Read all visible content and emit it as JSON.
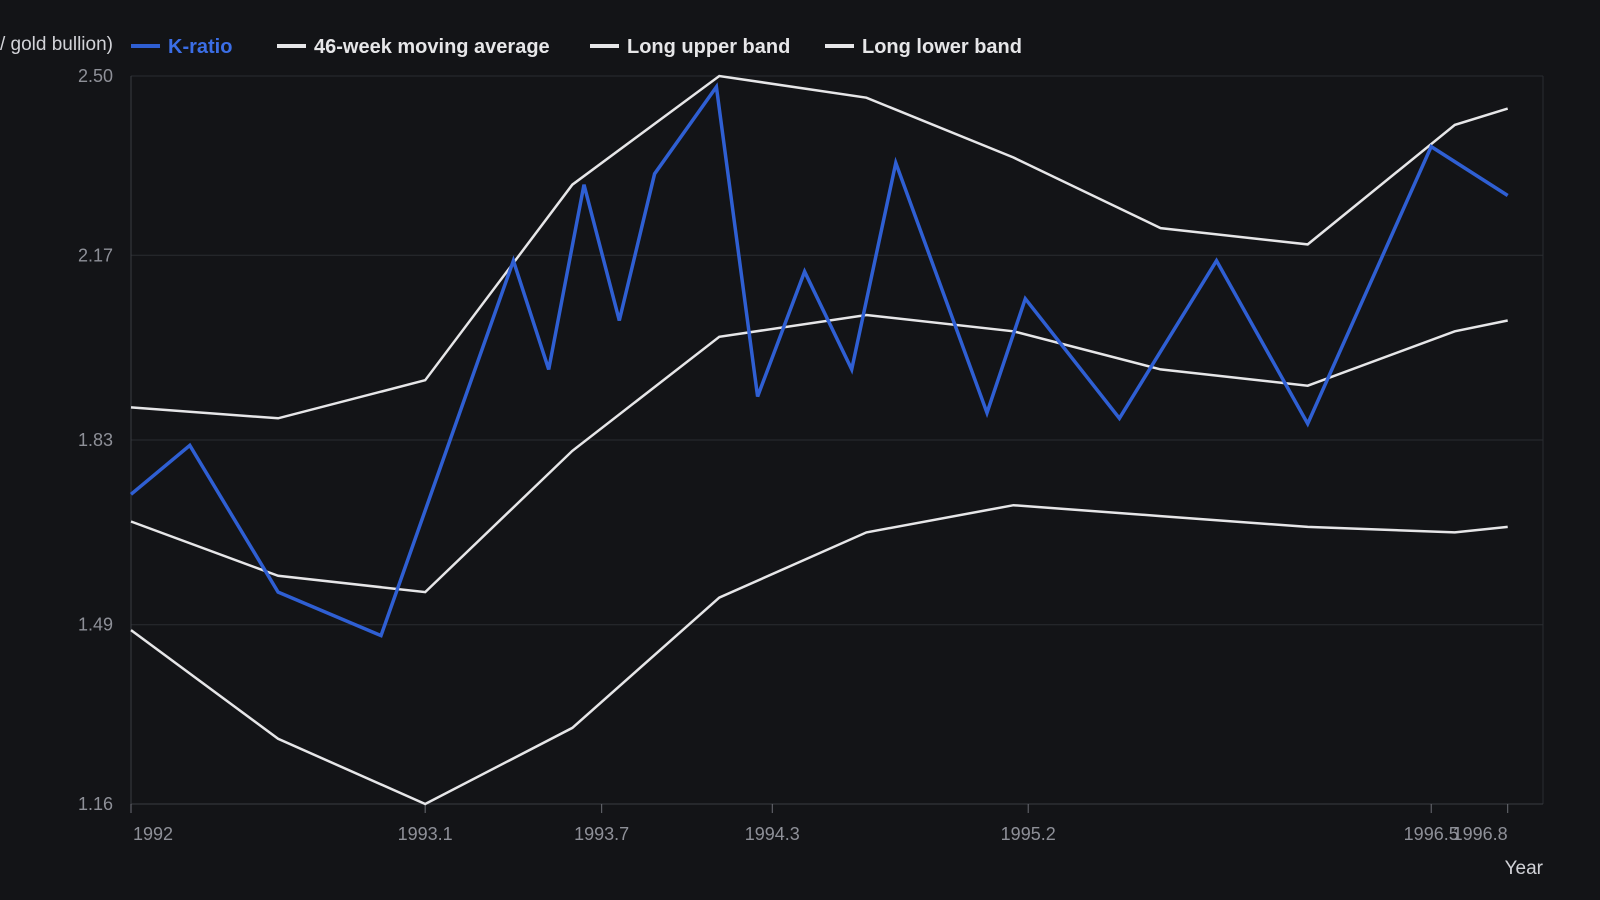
{
  "chart_data": {
    "type": "line",
    "title": "",
    "xlabel": "Year",
    "ylabel": "(K-ratio / gold bullion)",
    "xlim": [
      1992.0,
      1996.8
    ],
    "ylim": [
      1.16,
      2.5
    ],
    "y_ticks": [
      {
        "value": 1.16,
        "label": "1.16"
      },
      {
        "value": 1.49,
        "label": "1.49"
      },
      {
        "value": 1.83,
        "label": "1.83"
      },
      {
        "value": 2.17,
        "label": "2.17"
      },
      {
        "value": 2.5,
        "label": "2.50"
      }
    ],
    "x_ticks": [
      {
        "value": 1992.0,
        "label": "1992"
      },
      {
        "value": 1993.0,
        "label": "1993.1"
      },
      {
        "value": 1993.6,
        "label": "1993.7"
      },
      {
        "value": 1994.18,
        "label": "1994.3"
      },
      {
        "value": 1995.05,
        "label": "1995.2"
      },
      {
        "value": 1996.42,
        "label": "1996.5"
      },
      {
        "value": 1996.68,
        "label": "1996.8"
      }
    ],
    "grid": true,
    "legend_position": "top-left",
    "series": [
      {
        "name": "K-ratio",
        "color": "#2f5fd3",
        "x": [
          1992.0,
          1992.2,
          1992.5,
          1992.85,
          1993.3,
          1993.42,
          1993.54,
          1993.66,
          1993.78,
          1993.99,
          1994.13,
          1994.29,
          1994.45,
          1994.6,
          1994.91,
          1995.04,
          1995.36,
          1995.69,
          1996.0,
          1996.42,
          1996.68
        ],
        "values": [
          1.73,
          1.82,
          1.55,
          1.47,
          2.16,
          1.96,
          2.3,
          2.05,
          2.32,
          2.48,
          1.91,
          2.14,
          1.96,
          2.34,
          1.88,
          2.09,
          1.87,
          2.16,
          1.86,
          2.37,
          2.28
        ]
      },
      {
        "name": "46-week moving average",
        "color": "#e6e6e8",
        "x": [
          1992.0,
          1992.5,
          1993.0,
          1993.5,
          1994.0,
          1994.5,
          1995.0,
          1995.5,
          1996.0,
          1996.5,
          1996.68
        ],
        "values": [
          1.68,
          1.58,
          1.55,
          1.81,
          2.02,
          2.06,
          2.03,
          1.96,
          1.93,
          2.03,
          2.05
        ]
      },
      {
        "name": "Long upper band",
        "color": "#e6e6e8",
        "x": [
          1992.0,
          1992.5,
          1993.0,
          1993.5,
          1994.0,
          1994.5,
          1995.0,
          1995.5,
          1996.0,
          1996.5,
          1996.68
        ],
        "values": [
          1.89,
          1.87,
          1.94,
          2.3,
          2.5,
          2.46,
          2.35,
          2.22,
          2.19,
          2.41,
          2.44
        ]
      },
      {
        "name": "Long lower band",
        "color": "#e6e6e8",
        "x": [
          1992.0,
          1992.5,
          1993.0,
          1993.5,
          1994.0,
          1994.5,
          1995.0,
          1995.5,
          1996.0,
          1996.5,
          1996.68
        ],
        "values": [
          1.48,
          1.28,
          1.16,
          1.3,
          1.54,
          1.66,
          1.71,
          1.69,
          1.67,
          1.66,
          1.67
        ]
      }
    ]
  }
}
